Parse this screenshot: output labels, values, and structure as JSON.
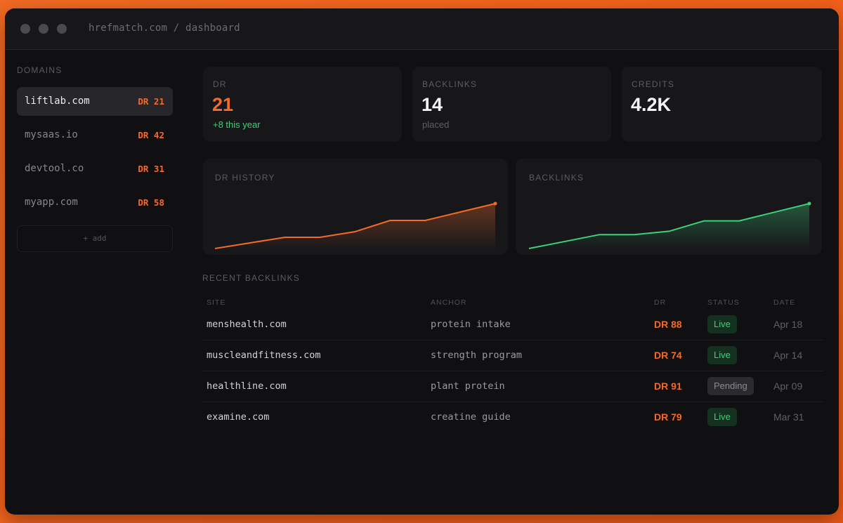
{
  "window": {
    "url": "hrefmatch.com / dashboard"
  },
  "sidebar": {
    "heading": "DOMAINS",
    "domains": [
      {
        "name": "liftlab.com",
        "dr": "DR 21",
        "active": true
      },
      {
        "name": "mysaas.io",
        "dr": "DR 42",
        "active": false
      },
      {
        "name": "devtool.co",
        "dr": "DR 31",
        "active": false
      },
      {
        "name": "myapp.com",
        "dr": "DR 58",
        "active": false
      }
    ],
    "add_label": "+ add"
  },
  "stats": [
    {
      "label": "DR",
      "value": "21",
      "sub": "+8 this year"
    },
    {
      "label": "BACKLINKS",
      "value": "14",
      "sub": "placed"
    },
    {
      "label": "CREDITS",
      "value": "4.2K",
      "sub": ""
    }
  ],
  "charts": {
    "dr_history": {
      "label": "DR HISTORY",
      "color": "#f26b2a",
      "values": [
        13,
        14,
        15,
        15,
        16,
        18,
        18,
        19.5,
        21
      ]
    },
    "backlinks": {
      "label": "BACKLINKS",
      "color": "#3fd07a",
      "values": [
        1,
        3,
        5,
        5,
        6,
        9,
        9,
        11.5,
        14
      ]
    }
  },
  "recent": {
    "heading": "RECENT BACKLINKS",
    "columns": {
      "site": "SITE",
      "anchor": "ANCHOR",
      "dr": "DR",
      "status": "STATUS",
      "date": "DATE"
    },
    "rows": [
      {
        "site": "menshealth.com",
        "anchor": "protein intake",
        "dr": "DR 88",
        "status": "Live",
        "date": "Apr 18"
      },
      {
        "site": "muscleandfitness.com",
        "anchor": "strength program",
        "dr": "DR 74",
        "status": "Live",
        "date": "Apr 14"
      },
      {
        "site": "healthline.com",
        "anchor": "plant protein",
        "dr": "DR 91",
        "status": "Pending",
        "date": "Apr 09"
      },
      {
        "site": "examine.com",
        "anchor": "creatine guide",
        "dr": "DR 79",
        "status": "Live",
        "date": "Mar 31"
      }
    ]
  },
  "colors": {
    "accent": "#f26b2a",
    "positive": "#3fd07a",
    "background": "#101013",
    "frame": "#f06a23"
  }
}
